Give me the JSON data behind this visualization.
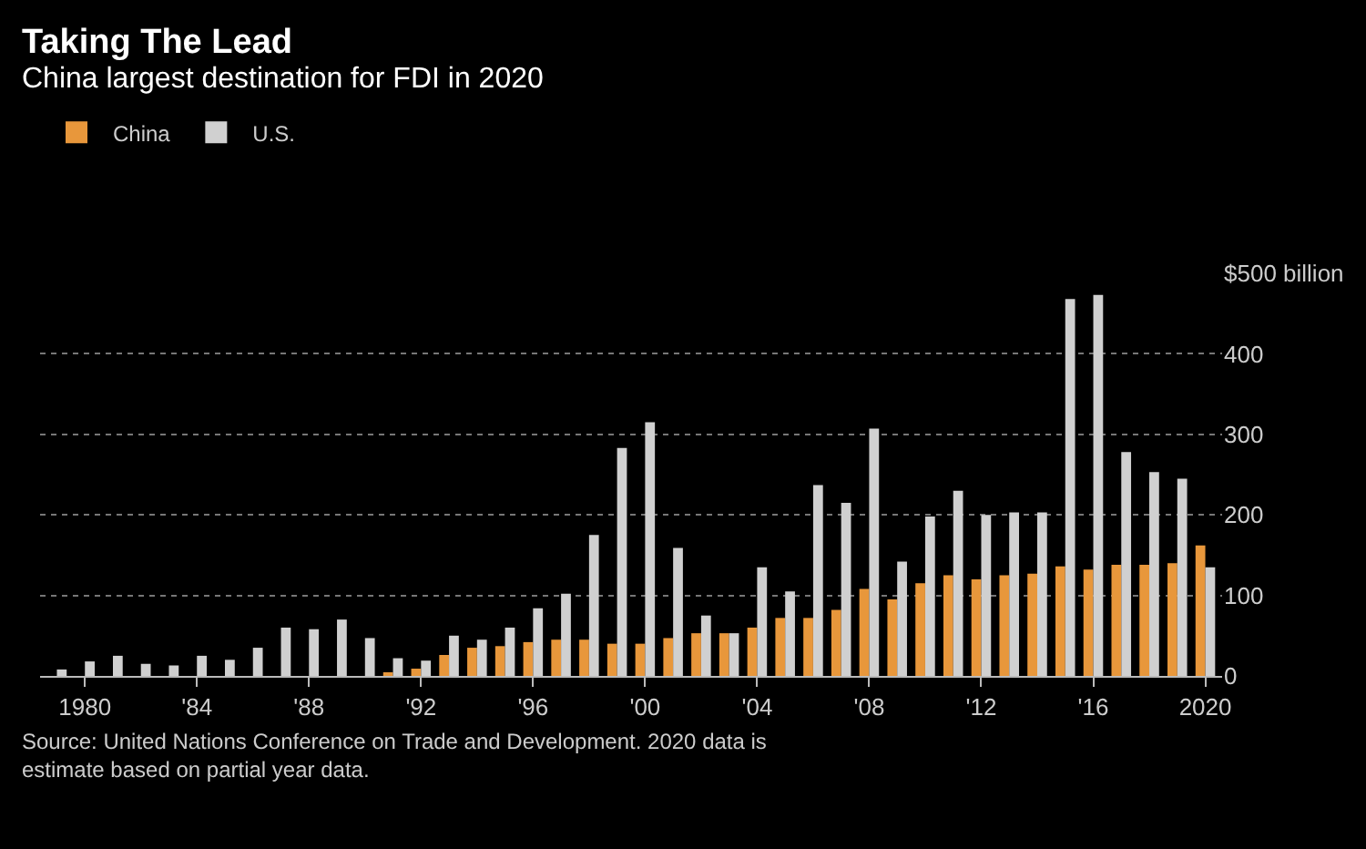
{
  "chart_data": {
    "type": "bar",
    "title": "Taking The Lead",
    "subtitle": "China largest destination for FDI in 2020",
    "x": [
      1979,
      1980,
      1981,
      1982,
      1983,
      1984,
      1985,
      1986,
      1987,
      1988,
      1989,
      1990,
      1991,
      1992,
      1993,
      1994,
      1995,
      1996,
      1997,
      1998,
      1999,
      2000,
      2001,
      2002,
      2003,
      2004,
      2005,
      2006,
      2007,
      2008,
      2009,
      2010,
      2011,
      2012,
      2013,
      2014,
      2015,
      2016,
      2017,
      2018,
      2019,
      2020
    ],
    "series": [
      {
        "name": "China",
        "color": "#e8973b",
        "values": [
          0,
          0,
          0,
          0,
          0,
          0,
          0,
          0,
          0,
          0,
          0,
          0,
          4,
          9,
          26,
          35,
          37,
          42,
          45,
          45,
          40,
          40,
          47,
          53,
          53,
          60,
          72,
          72,
          82,
          108,
          95,
          115,
          125,
          120,
          125,
          127,
          136,
          132,
          138,
          138,
          140,
          162
        ]
      },
      {
        "name": "U.S.",
        "color": "#d0d0d0",
        "values": [
          8,
          18,
          25,
          15,
          13,
          25,
          20,
          35,
          60,
          58,
          70,
          47,
          22,
          19,
          50,
          45,
          60,
          84,
          102,
          175,
          283,
          315,
          159,
          75,
          53,
          135,
          105,
          237,
          215,
          307,
          142,
          198,
          230,
          200,
          203,
          203,
          468,
          473,
          278,
          253,
          245,
          135
        ]
      }
    ],
    "xlim": [
      1978.4,
      2020.6
    ],
    "xticks": [
      {
        "value": 1980,
        "label": "1980"
      },
      {
        "value": 1984,
        "label": "'84"
      },
      {
        "value": 1988,
        "label": "'88"
      },
      {
        "value": 1992,
        "label": "'92"
      },
      {
        "value": 1996,
        "label": "'96"
      },
      {
        "value": 2000,
        "label": "'00"
      },
      {
        "value": 2004,
        "label": "'04"
      },
      {
        "value": 2008,
        "label": "'08"
      },
      {
        "value": 2012,
        "label": "'12"
      },
      {
        "value": 2016,
        "label": "'16"
      },
      {
        "value": 2020,
        "label": "2020"
      }
    ],
    "ylim": [
      0,
      500
    ],
    "yticks": [
      0,
      100,
      200,
      300,
      400,
      {
        "value": 500,
        "label": "$500 billion"
      }
    ],
    "grid": "y",
    "legend": "top left",
    "annotations": [
      "Source: United Nations Conference on Trade and Development. 2020 data is\nestimate based on partial year data."
    ]
  }
}
